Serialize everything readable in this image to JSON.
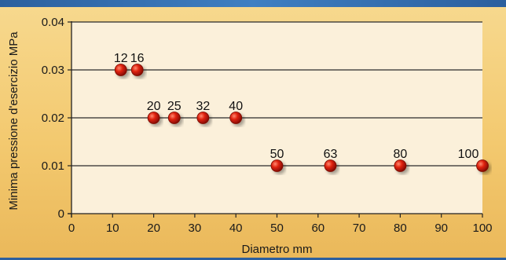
{
  "chart_data": {
    "type": "scatter",
    "title": "",
    "xlabel": "Diametro mm",
    "ylabel": "Minima pressione d'esercizio MPa",
    "xlim": [
      0,
      100
    ],
    "ylim": [
      0,
      0.04
    ],
    "x_ticks": [
      "0",
      "10",
      "20",
      "30",
      "40",
      "50",
      "60",
      "70",
      "80",
      "90",
      "100"
    ],
    "y_ticks": [
      "0",
      "0.01",
      "0.02",
      "0.03",
      "0.04"
    ],
    "grid": "horizontal",
    "points": [
      {
        "x": 12,
        "y": 0.03,
        "label": "12"
      },
      {
        "x": 16,
        "y": 0.03,
        "label": "16"
      },
      {
        "x": 20,
        "y": 0.02,
        "label": "20"
      },
      {
        "x": 25,
        "y": 0.02,
        "label": "25"
      },
      {
        "x": 32,
        "y": 0.02,
        "label": "32"
      },
      {
        "x": 40,
        "y": 0.02,
        "label": "40"
      },
      {
        "x": 50,
        "y": 0.01,
        "label": "50"
      },
      {
        "x": 63,
        "y": 0.01,
        "label": "63"
      },
      {
        "x": 80,
        "y": 0.01,
        "label": "80"
      },
      {
        "x": 100,
        "y": 0.01,
        "label": "100"
      }
    ],
    "colors": {
      "plot_background": "#fbf0da",
      "point": "#d81e0e",
      "grid": "#2a2a2a"
    }
  }
}
